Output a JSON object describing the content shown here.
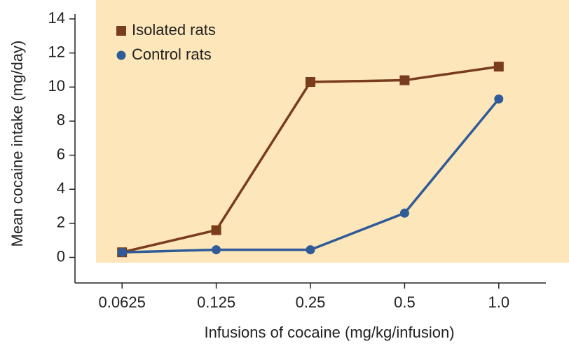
{
  "chart_data": {
    "type": "line",
    "xlabel": "Infusions of cocaine (mg/kg/infusion)",
    "ylabel": "Mean cocaine intake (mg/day)",
    "categories": [
      "0.0625",
      "0.125",
      "0.25",
      "0.5",
      "1.0"
    ],
    "series": [
      {
        "name": "Isolated rats",
        "color": "#7a3d1c",
        "marker": "square",
        "values": [
          0.3,
          1.6,
          10.3,
          10.4,
          11.2
        ]
      },
      {
        "name": "Control rats",
        "color": "#2f5b98",
        "marker": "circle",
        "values": [
          0.3,
          0.45,
          0.45,
          2.6,
          9.3
        ]
      }
    ],
    "ylim": [
      -1.5,
      14
    ],
    "yticks": [
      0,
      2,
      4,
      6,
      8,
      10,
      12,
      14
    ],
    "legend": "upper left"
  }
}
